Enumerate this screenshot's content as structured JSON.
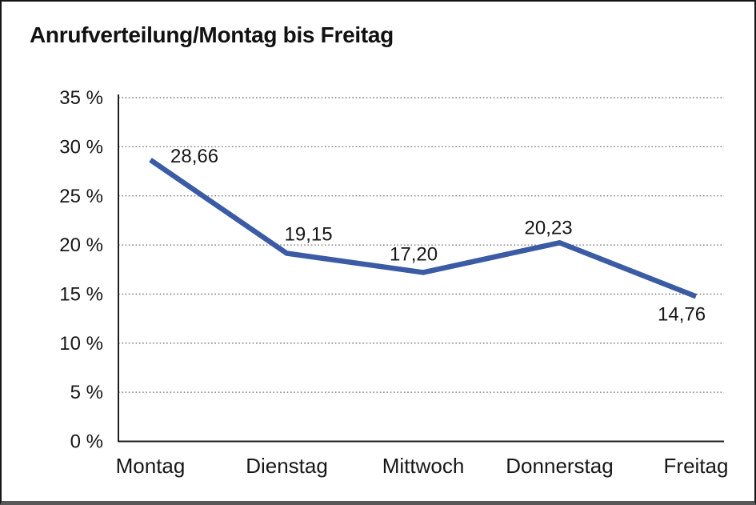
{
  "chart_data": {
    "type": "line",
    "title": "Anrufverteilung/Montag bis Freitag",
    "categories": [
      "Montag",
      "Dienstag",
      "Mittwoch",
      "Donnerstag",
      "Freitag"
    ],
    "series": [
      {
        "values": [
          28.66,
          19.15,
          17.2,
          20.23,
          14.76
        ],
        "value_labels": [
          "28,66",
          "19,15",
          "17,20",
          "20,23",
          "14,76"
        ],
        "color": "#3B5BA5"
      }
    ],
    "xlabel": "",
    "ylabel": "",
    "ylim": [
      0,
      35
    ],
    "ytick_step": 5,
    "yticklabels": [
      "0 %",
      "5 %",
      "10 %",
      "15 %",
      "20 %",
      "25 %",
      "30 %",
      "35 %"
    ],
    "grid": "horizontal dotted",
    "legend": "none",
    "markers": "none"
  },
  "colors": {
    "line": "#3B5BA5",
    "text": "#161616",
    "gridline": "#6f6f6f",
    "axis": "#1c1c1c",
    "frame_border": "#161616",
    "frame_bottom_bar": "#585858",
    "background": "#ffffff"
  }
}
